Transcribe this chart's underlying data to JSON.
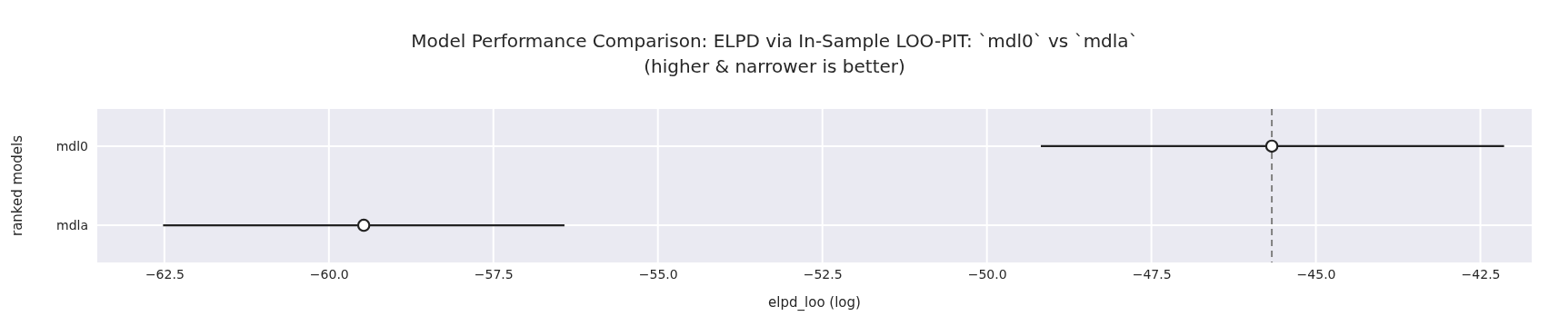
{
  "chart_data": {
    "type": "scatter",
    "orientation": "horizontal",
    "title": "Model Performance Comparison: ELPD via In-Sample LOO-PIT: `mdl0` vs `mdla`",
    "subtitle": "(higher & narrower is better)",
    "xlabel": "elpd_loo (log)",
    "ylabel": "ranked models",
    "categories": [
      "mdl0",
      "mdla"
    ],
    "series": [
      {
        "color": "#222222",
        "values": [
          -45.67,
          -59.47
        ],
        "errors": [
          [
            -49.18,
            -42.14
          ],
          [
            -62.52,
            -56.42
          ]
        ]
      }
    ],
    "marker": "circle",
    "grid": true,
    "xlim": [
      -63.52,
      -41.72
    ],
    "xticks": [
      {
        "value": -62.5,
        "label": "−62.5"
      },
      {
        "value": -60,
        "label": "−60.0"
      },
      {
        "value": -57.5,
        "label": "−57.5"
      },
      {
        "value": -55,
        "label": "−55.0"
      },
      {
        "value": -52.5,
        "label": "−52.5"
      },
      {
        "value": -50,
        "label": "−50.0"
      },
      {
        "value": -47.5,
        "label": "−47.5"
      },
      {
        "value": -45,
        "label": "−45.0"
      },
      {
        "value": -42.5,
        "label": "−42.5"
      }
    ],
    "ref_lines": [
      {
        "axis": "x",
        "value": -45.67,
        "color": "#808080",
        "line_style": "dashed"
      }
    ]
  }
}
